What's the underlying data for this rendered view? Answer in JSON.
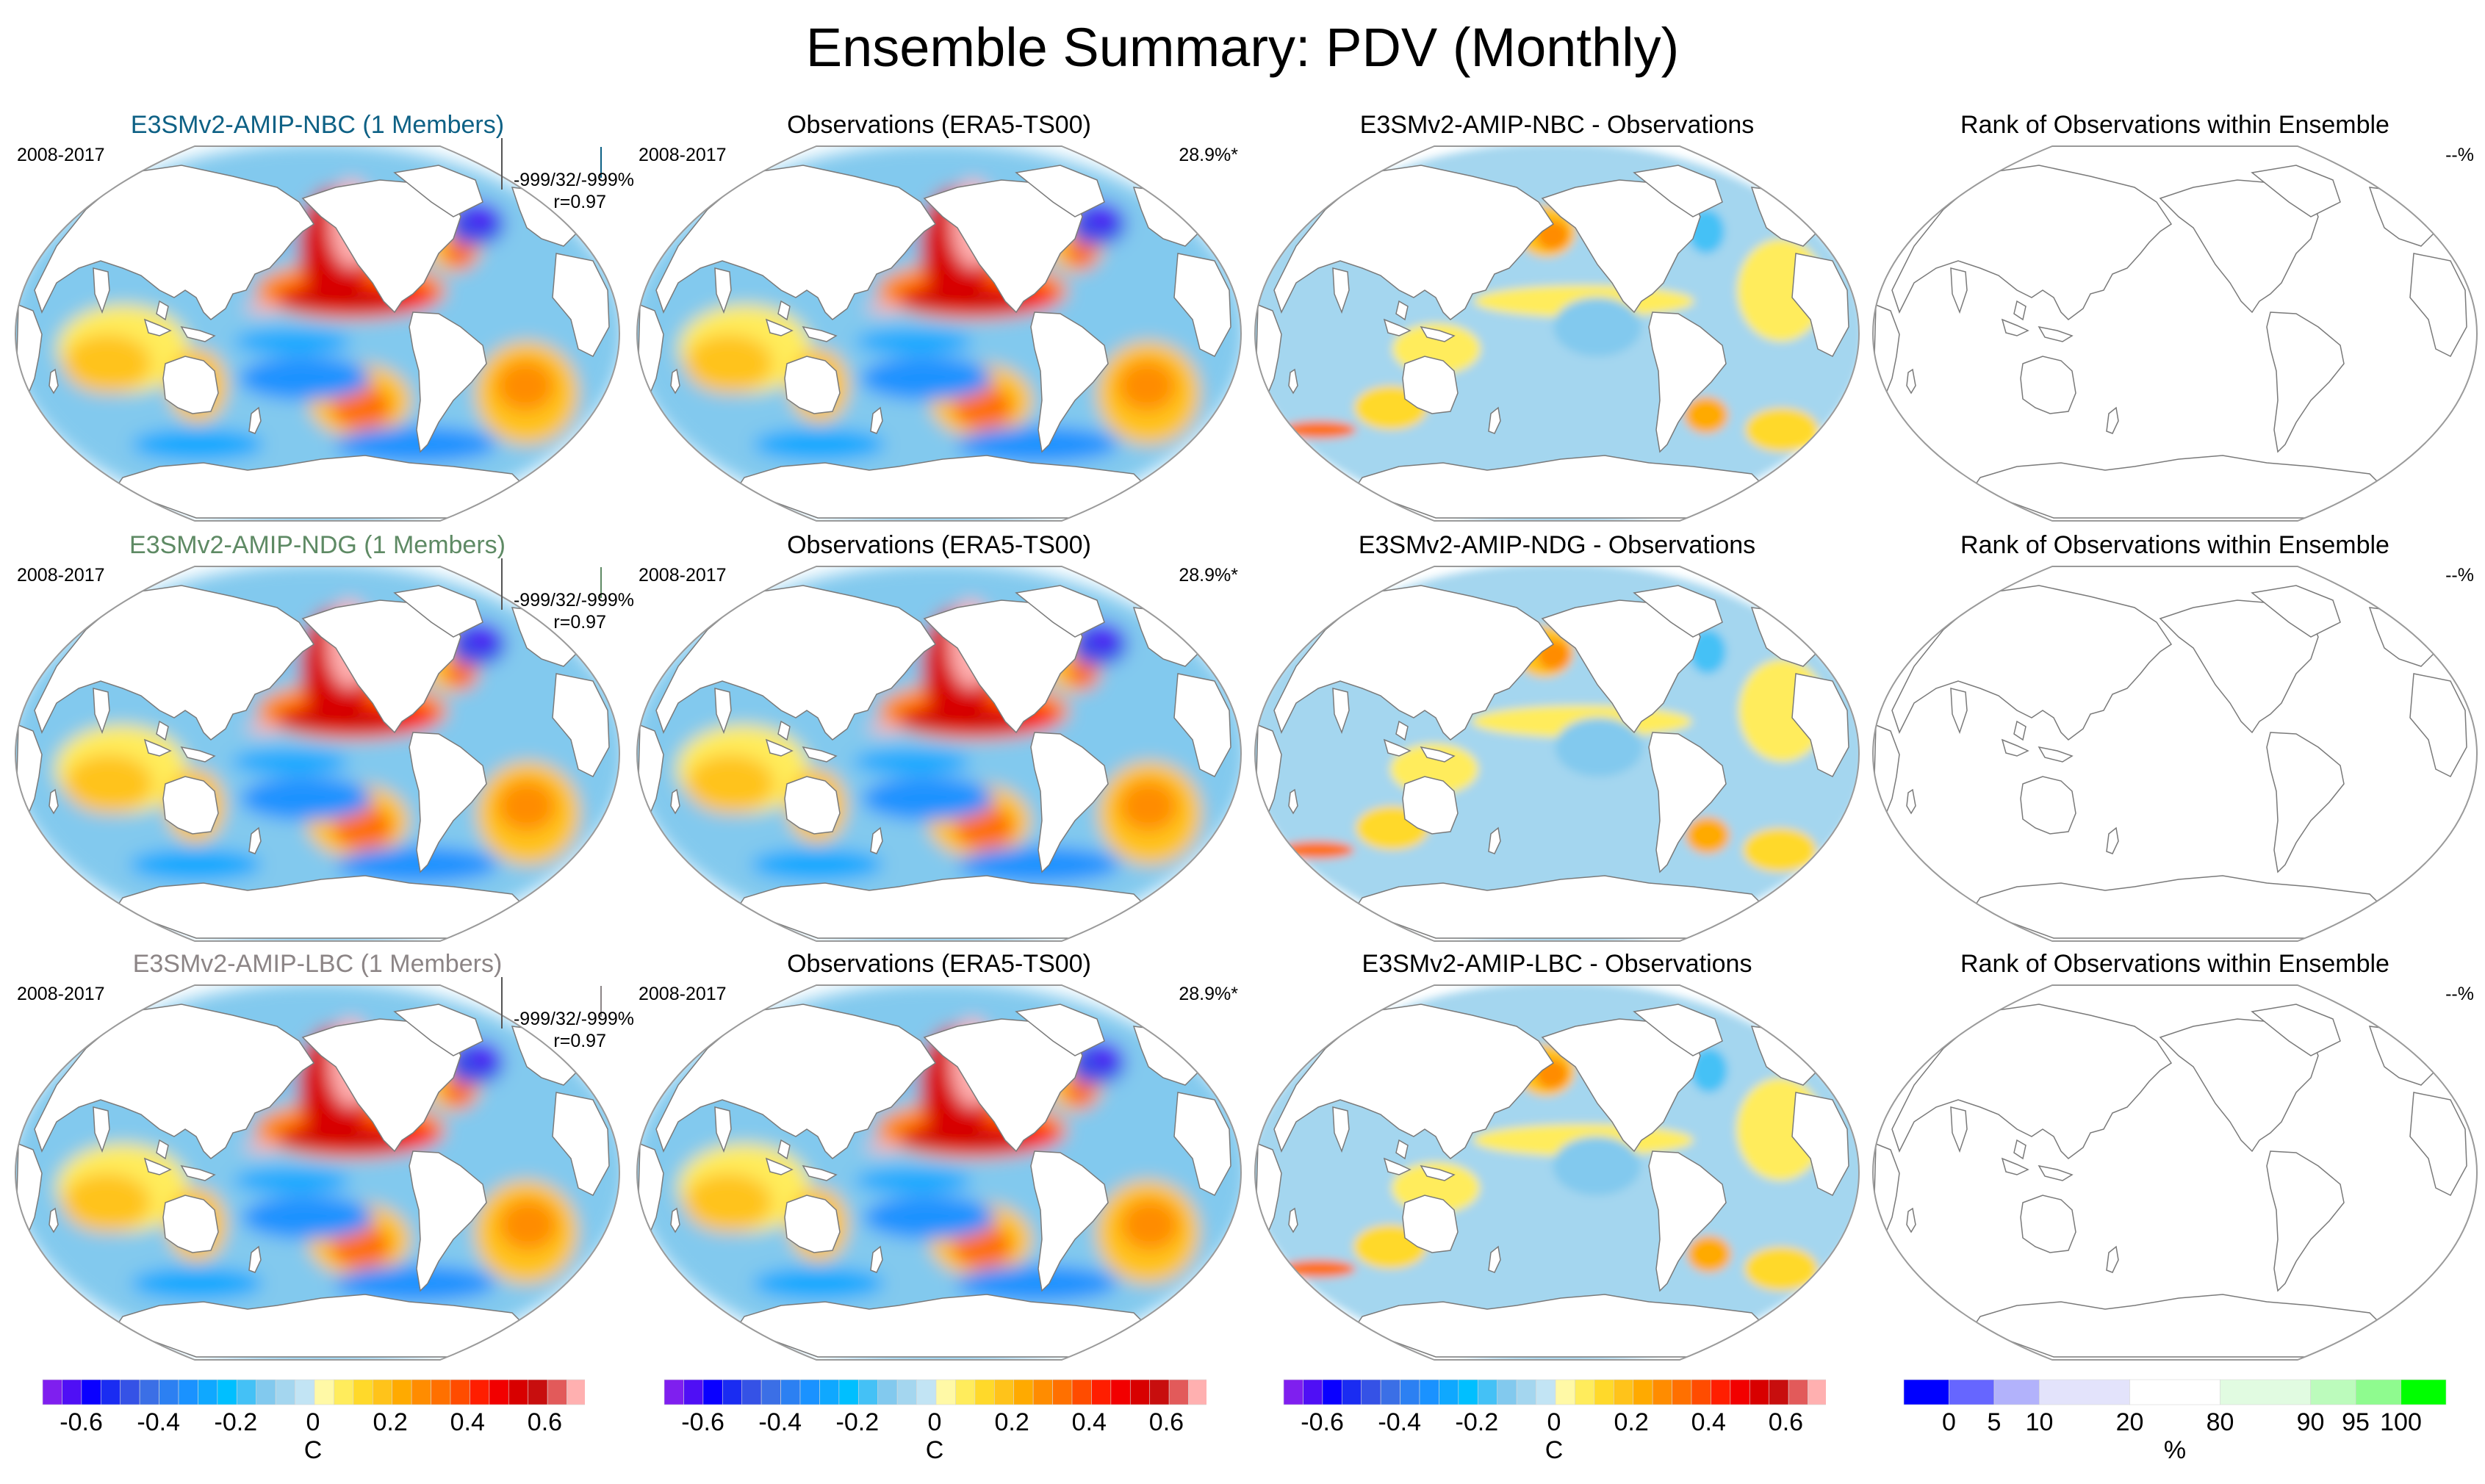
{
  "title": "Ensemble Summary: PDV (Monthly)",
  "colors": {
    "model_nbc": "#0e6185",
    "model_ndg": "#5e8a64",
    "model_lbc": "#8c8586",
    "land": "#ffffff",
    "coast": "#7a7a7a",
    "frame": "#9a9a9a"
  },
  "rows": [
    {
      "model_title": "E3SMv2-AMIP-NBC (1 Members)",
      "model_color_key": "model_nbc",
      "period": "2008-2017",
      "stats_line1": "-999/32/-999%",
      "stats_line2": "r=0.97",
      "obs_title": "Observations (ERA5-TS00)",
      "obs_period": "2008-2017",
      "obs_variance": "28.9%*",
      "diff_title": "E3SMv2-AMIP-NBC - Observations",
      "rank_title": "Rank of Observations within Ensemble",
      "rank_value": "--%"
    },
    {
      "model_title": "E3SMv2-AMIP-NDG (1 Members)",
      "model_color_key": "model_ndg",
      "period": "2008-2017",
      "stats_line1": "-999/32/-999%",
      "stats_line2": "r=0.97",
      "obs_title": "Observations (ERA5-TS00)",
      "obs_period": "2008-2017",
      "obs_variance": "28.9%*",
      "diff_title": "E3SMv2-AMIP-NDG - Observations",
      "rank_title": "Rank of Observations within Ensemble",
      "rank_value": "--%"
    },
    {
      "model_title": "E3SMv2-AMIP-LBC (1 Members)",
      "model_color_key": "model_lbc",
      "period": "2008-2017",
      "stats_line1": "-999/32/-999%",
      "stats_line2": "r=0.97",
      "obs_title": "Observations (ERA5-TS00)",
      "obs_period": "2008-2017",
      "obs_variance": "28.9%*",
      "diff_title": "E3SMv2-AMIP-LBC - Observations",
      "rank_title": "Rank of Observations within Ensemble",
      "rank_value": "--%"
    }
  ],
  "chart_data": [
    {
      "type": "heatmap",
      "title": "PDV regression pattern maps (model, observations, difference)",
      "projection": "global, Pacific-centered",
      "units": "C",
      "colorbar": {
        "levels": [
          -0.7,
          -0.65,
          -0.6,
          -0.55,
          -0.5,
          -0.45,
          -0.4,
          -0.35,
          -0.3,
          -0.25,
          -0.2,
          -0.15,
          -0.1,
          -0.05,
          0,
          0.05,
          0.1,
          0.15,
          0.2,
          0.25,
          0.3,
          0.35,
          0.4,
          0.45,
          0.5,
          0.55,
          0.6,
          0.65,
          0.7
        ],
        "tick_values": [
          -0.6,
          -0.4,
          -0.2,
          0,
          0.2,
          0.4,
          0.6
        ],
        "tick_labels": [
          "-0.6",
          "-0.4",
          "-0.2",
          "0",
          "0.2",
          "0.4",
          "0.6"
        ],
        "colors": [
          "#7f1fef",
          "#4f0ff5",
          "#0a00ff",
          "#1a2cf2",
          "#3552e6",
          "#3b6fe6",
          "#2c80f2",
          "#1a92ff",
          "#0fa8ff",
          "#00bfff",
          "#44c1f6",
          "#82c9ee",
          "#a4d6ef",
          "#c2e4f4",
          "#fff9a6",
          "#ffec5c",
          "#ffd92a",
          "#ffc31a",
          "#ffaa00",
          "#ff8c00",
          "#ff7000",
          "#ff4c00",
          "#ff1e00",
          "#f20000",
          "#d80000",
          "#c80e0e",
          "#e25a5a",
          "#ffb0b0"
        ],
        "unit_label": "C"
      },
      "features": [
        {
          "name": "equatorial central-eastern Pacific",
          "sign": "positive",
          "approx_value": 0.65
        },
        {
          "name": "northeast Pacific / North American west coast",
          "sign": "positive",
          "approx_value": 0.7
        },
        {
          "name": "central North Pacific (Kuroshio extension)",
          "sign": "negative",
          "approx_value": -0.6
        },
        {
          "name": "North Atlantic subpolar",
          "sign": "negative",
          "approx_value": -0.65
        },
        {
          "name": "South Pacific (subtropical)",
          "sign": "negative",
          "approx_value": -0.4
        },
        {
          "name": "South Pacific (midlatitude)",
          "sign": "positive",
          "approx_value": 0.3
        },
        {
          "name": "South Atlantic",
          "sign": "positive",
          "approx_value": 0.25
        },
        {
          "name": "Southern Ocean",
          "sign": "negative",
          "approx_value": -0.35
        }
      ],
      "difference_features": [
        {
          "name": "central North Pacific",
          "sign": "positive",
          "approx_value": 0.25
        },
        {
          "name": "equatorial Pacific",
          "sign": "positive",
          "approx_value": 0.1
        },
        {
          "name": "tropical South Pacific",
          "sign": "negative",
          "approx_value": -0.1
        },
        {
          "name": "South Atlantic / Argentine shelf",
          "sign": "positive",
          "approx_value": 0.4
        }
      ]
    },
    {
      "type": "heatmap",
      "title": "Rank of Observations within Ensemble",
      "units": "%",
      "colorbar": {
        "boundaries": [
          0,
          5,
          10,
          20,
          80,
          90,
          95,
          100
        ],
        "tick_labels": [
          "0",
          "5",
          "10",
          "20",
          "80",
          "90",
          "95",
          "100"
        ],
        "colors": [
          "#0000ff",
          "#6666ff",
          "#b2b2fb",
          "#e3e3fb",
          "#ffffff",
          "#e1fbe1",
          "#bcfbbc",
          "#8ffb8f",
          "#00ff00"
        ],
        "unit_label": "%"
      },
      "values": "no data (--%)"
    }
  ]
}
